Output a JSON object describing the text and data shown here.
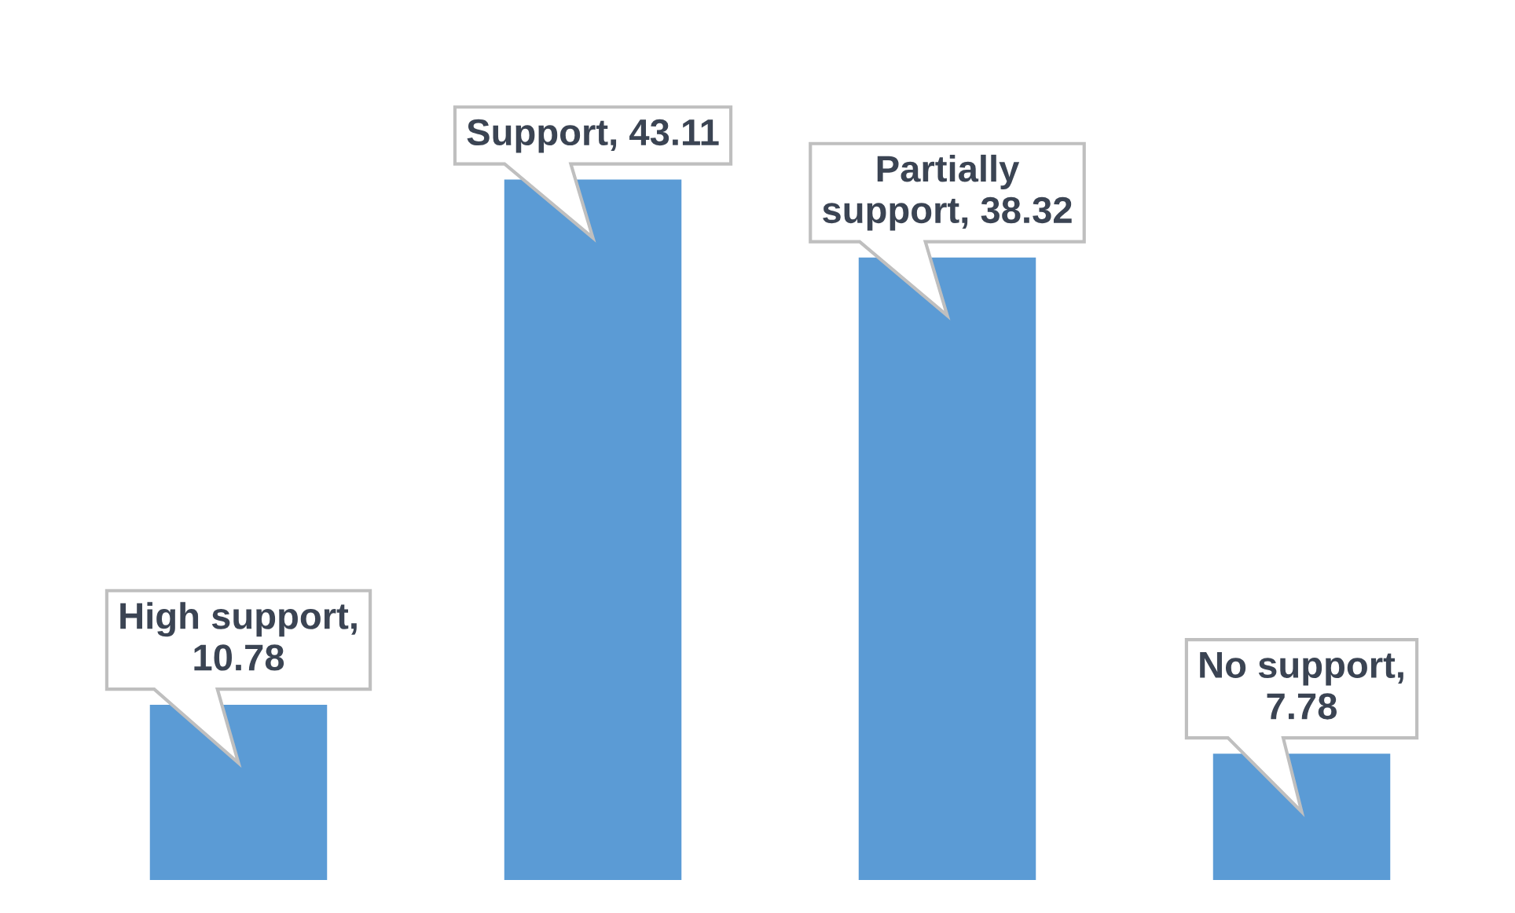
{
  "chart_data": {
    "type": "bar",
    "categories": [
      null,
      null,
      null,
      null
    ],
    "values": [
      10.78,
      43.11,
      38.32,
      7.78
    ],
    "color": "#5b9bd5",
    "value_labels": [
      "High support,\n10.78",
      "Support, 43.11",
      "Partially\nsupport, 38.32",
      "No support,\n7.78"
    ],
    "tick_labels": false
  }
}
